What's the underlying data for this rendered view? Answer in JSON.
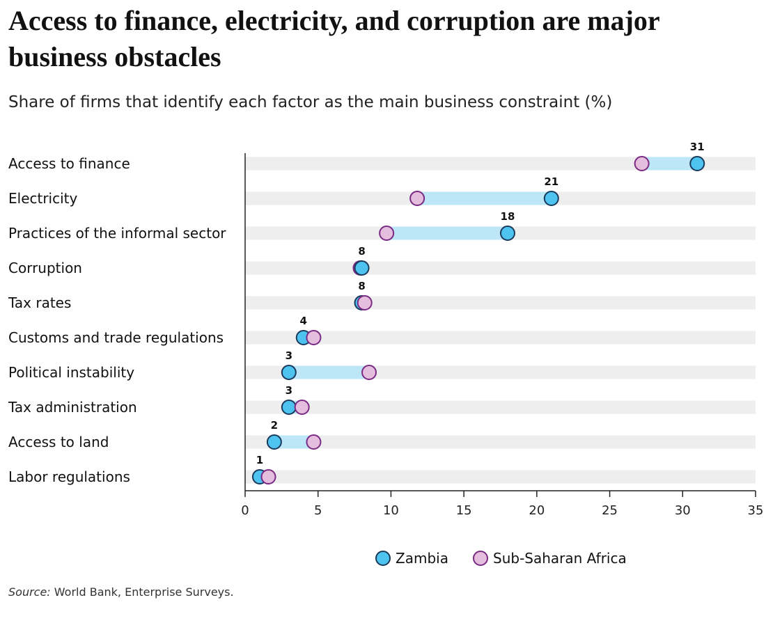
{
  "title": "Access to finance, electricity, and corruption are major business obstacles",
  "subtitle": "Share of firms that identify each factor as the main business constraint (%)",
  "source": {
    "label": "Source:",
    "text": "World Bank, Enterprise Surveys."
  },
  "colors": {
    "zambia_fill": "#4FC3F0",
    "zambia_stroke": "#1a3a5c",
    "ssa_fill": "#E6BEDD",
    "ssa_stroke": "#7a2a84",
    "connector": "#BDE6F7",
    "band": "#EEEEEE",
    "axis": "#222222"
  },
  "chart_data": {
    "type": "dumbbell",
    "xlim": [
      0,
      35
    ],
    "xticks": [
      0,
      5,
      10,
      15,
      20,
      25,
      30,
      35
    ],
    "categories": [
      "Access to finance",
      "Electricity",
      "Practices of the informal sector",
      "Corruption",
      "Tax rates",
      "Customs and trade regulations",
      "Political instability",
      "Tax administration",
      "Access to land",
      "Labor regulations"
    ],
    "series": [
      {
        "name": "Zambia",
        "values": [
          31,
          21,
          18,
          8,
          8,
          4,
          3,
          3,
          2,
          1
        ]
      },
      {
        "name": "Sub-Saharan Africa",
        "values": [
          27.2,
          11.8,
          9.7,
          7.9,
          8.2,
          4.7,
          8.5,
          3.9,
          4.7,
          1.6
        ]
      }
    ],
    "data_labels": [
      "31",
      "21",
      "18",
      "8",
      "8",
      "4",
      "3",
      "3",
      "2",
      "1"
    ],
    "legend_position": "bottom"
  }
}
